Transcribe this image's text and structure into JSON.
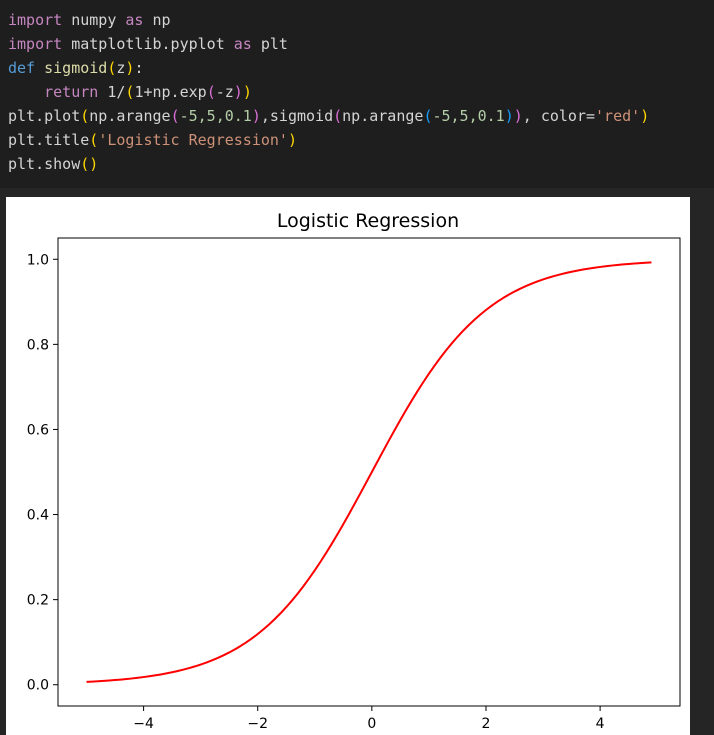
{
  "code": {
    "lines": [
      [
        {
          "t": "import",
          "c": "kw"
        },
        {
          "t": " numpy ",
          "c": "plain"
        },
        {
          "t": "as",
          "c": "kw"
        },
        {
          "t": " np",
          "c": "plain"
        }
      ],
      [
        {
          "t": "import",
          "c": "kw"
        },
        {
          "t": " matplotlib.pyplot ",
          "c": "plain"
        },
        {
          "t": "as",
          "c": "kw"
        },
        {
          "t": " plt",
          "c": "plain"
        }
      ],
      [
        {
          "t": "def",
          "c": "def"
        },
        {
          "t": " ",
          "c": "plain"
        },
        {
          "t": "sigmoid",
          "c": "fn"
        },
        {
          "t": "(",
          "c": "p1"
        },
        {
          "t": "z",
          "c": "plain"
        },
        {
          "t": ")",
          "c": "p1"
        },
        {
          "t": ":",
          "c": "plain"
        }
      ],
      [
        {
          "t": "    ",
          "c": "plain"
        },
        {
          "t": "return",
          "c": "kw"
        },
        {
          "t": " 1/",
          "c": "plain"
        },
        {
          "t": "(",
          "c": "p1"
        },
        {
          "t": "1+np.exp",
          "c": "plain"
        },
        {
          "t": "(",
          "c": "p2"
        },
        {
          "t": "-z",
          "c": "plain"
        },
        {
          "t": ")",
          "c": "p2"
        },
        {
          "t": ")",
          "c": "p1"
        }
      ],
      [
        {
          "t": "plt.plot",
          "c": "plain"
        },
        {
          "t": "(",
          "c": "p1"
        },
        {
          "t": "np.arange",
          "c": "plain"
        },
        {
          "t": "(",
          "c": "p2"
        },
        {
          "t": "-5,5,0.1",
          "c": "num"
        },
        {
          "t": ")",
          "c": "p2"
        },
        {
          "t": ",sigmoid",
          "c": "plain"
        },
        {
          "t": "(",
          "c": "p2"
        },
        {
          "t": "np.arange",
          "c": "plain"
        },
        {
          "t": "(",
          "c": "p3"
        },
        {
          "t": "-5,5,0.1",
          "c": "num"
        },
        {
          "t": ")",
          "c": "p3"
        },
        {
          "t": ")",
          "c": "p2"
        },
        {
          "t": ", color=",
          "c": "plain"
        },
        {
          "t": "'red'",
          "c": "str"
        },
        {
          "t": ")",
          "c": "p1"
        }
      ],
      [
        {
          "t": "plt.title",
          "c": "plain"
        },
        {
          "t": "(",
          "c": "p1"
        },
        {
          "t": "'Logistic Regression'",
          "c": "str"
        },
        {
          "t": ")",
          "c": "p1"
        }
      ],
      [
        {
          "t": "plt.show",
          "c": "plain"
        },
        {
          "t": "()",
          "c": "p1"
        }
      ]
    ]
  },
  "chart_data": {
    "type": "line",
    "title": "Logistic Regression",
    "xlabel": "",
    "ylabel": "",
    "xlim": [
      -5.5,
      5.4
    ],
    "ylim": [
      -0.05,
      1.05
    ],
    "xticks": [
      -4,
      -2,
      0,
      2,
      4
    ],
    "xtick_labels": [
      "−4",
      "−2",
      "0",
      "2",
      "4"
    ],
    "yticks": [
      0.0,
      0.2,
      0.4,
      0.6,
      0.8,
      1.0
    ],
    "ytick_labels": [
      "0.0",
      "0.2",
      "0.4",
      "0.6",
      "0.8",
      "1.0"
    ],
    "grid": false,
    "series": [
      {
        "color": "#ff0000",
        "function": "sigmoid",
        "x_start": -5,
        "x_stop": 5,
        "x_step": 0.1
      }
    ]
  }
}
